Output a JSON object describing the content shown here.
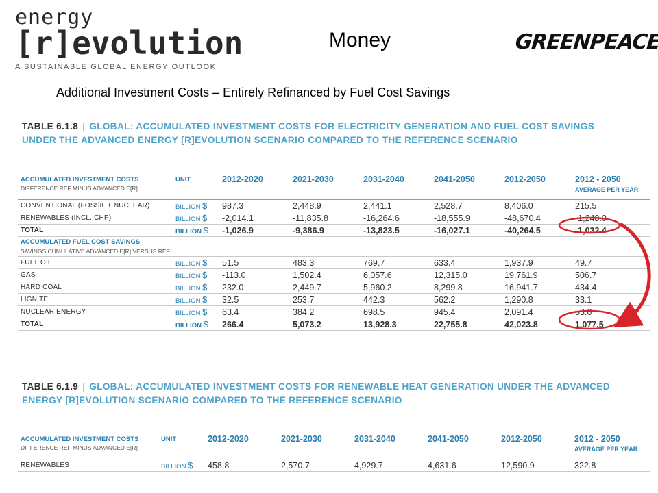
{
  "logo": {
    "line1": "energy",
    "line2": "[r]evolution",
    "tagline": "A SUSTAINABLE GLOBAL ENERGY OUTLOOK"
  },
  "slide_title": "Money",
  "greenpeace_logo": "GREENPEACE",
  "subtitle": "Additional Investment Costs – Entirely Refinanced by Fuel Cost Savings",
  "table1": {
    "number": "TABLE 6.1.8",
    "separator": "|",
    "title_line1": "GLOBAL: ACCUMULATED INVESTMENT COSTS FOR ELECTRICITY GENERATION AND FUEL COST SAVINGS",
    "title_line2": "UNDER THE ADVANCED ENERGY [R]EVOLUTION SCENARIO COMPARED TO THE REFERENCE SCENARIO",
    "header": {
      "label": "ACCUMULATED INVESTMENT COSTS",
      "sublabel": "DIFFERENCE REF MINUS ADVANCED E[R]",
      "unit": "UNIT",
      "cols": [
        "2012-2020",
        "2021-2030",
        "2031-2040",
        "2041-2050",
        "2012-2050",
        "2012 - 2050"
      ],
      "avg": "AVERAGE PER YEAR"
    },
    "rows1": [
      {
        "label": "CONVENTIONAL (FOSSIL + NUCLEAR)",
        "unit": "BILLION",
        "cur": "$",
        "vals": [
          "987.3",
          "2,448.9",
          "2,441.1",
          "2,528.7",
          "8,406.0",
          "215.5"
        ]
      },
      {
        "label": "RENEWABLES (INCL. CHP)",
        "unit": "BILLION",
        "cur": "$",
        "vals": [
          "-2,014.1",
          "-11,835.8",
          "-16,264.6",
          "-18,555.9",
          "-48,670.4",
          "-1,248.0"
        ]
      },
      {
        "label": "TOTAL",
        "unit": "BILLION",
        "cur": "$",
        "vals": [
          "-1,026.9",
          "-9,386.9",
          "-13,823.5",
          "-16,027.1",
          "-40,264.5",
          "-1,032.4"
        ]
      }
    ],
    "section2": {
      "label": "ACCUMULATED FUEL COST SAVINGS",
      "sublabel": "SAVINGS CUMULATIVE ADVANCED E[R] VERSUS REF"
    },
    "rows2": [
      {
        "label": "FUEL OIL",
        "unit": "BILLION",
        "cur": "$",
        "vals": [
          "51.5",
          "483.3",
          "769.7",
          "633.4",
          "1,937.9",
          "49.7"
        ]
      },
      {
        "label": "GAS",
        "unit": "BILLION",
        "cur": "$",
        "vals": [
          "-113.0",
          "1,502.4",
          "6,057.6",
          "12,315.0",
          "19,761.9",
          "506.7"
        ]
      },
      {
        "label": "HARD COAL",
        "unit": "BILLION",
        "cur": "$",
        "vals": [
          "232.0",
          "2,449.7",
          "5,960.2",
          "8,299.8",
          "16,941.7",
          "434.4"
        ]
      },
      {
        "label": "LIGNITE",
        "unit": "BILLION",
        "cur": "$",
        "vals": [
          "32.5",
          "253.7",
          "442.3",
          "562.2",
          "1,290.8",
          "33.1"
        ]
      },
      {
        "label": "NUCLEAR ENERGY",
        "unit": "BILLION",
        "cur": "$",
        "vals": [
          "63.4",
          "384.2",
          "698.5",
          "945.4",
          "2,091.4",
          "53.6"
        ]
      },
      {
        "label": "TOTAL",
        "unit": "BILLION",
        "cur": "$",
        "vals": [
          "266.4",
          "5,073.2",
          "13,928.3",
          "22,755.8",
          "42,023.8",
          "1,077.5"
        ]
      }
    ]
  },
  "table2": {
    "number": "TABLE 6.1.9",
    "separator": "|",
    "title_line1": "GLOBAL: ACCUMULATED INVESTMENT COSTS FOR RENEWABLE HEAT GENERATION UNDER THE ADVANCED",
    "title_line2": "ENERGY [R]EVOLUTION SCENARIO COMPARED TO THE REFERENCE SCENARIO",
    "header": {
      "label": "ACCUMULATED INVESTMENT COSTS",
      "sublabel": "DIFFERENCE REF MINUS ADVANCED E[R]",
      "unit": "UNIT",
      "cols": [
        "2012-2020",
        "2021-2030",
        "2031-2040",
        "2041-2050",
        "2012-2050",
        "2012 - 2050"
      ],
      "avg": "AVERAGE PER YEAR"
    },
    "rows": [
      {
        "label": "RENEWABLES",
        "unit": "BILLION",
        "cur": "$",
        "vals": [
          "458.8",
          "2,570.7",
          "4,929.7",
          "4,631.6",
          "12,590.9",
          "322.8"
        ]
      }
    ]
  },
  "annotation_color": "#d9232a"
}
